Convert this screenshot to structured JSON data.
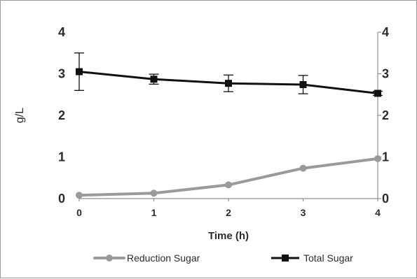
{
  "chart_data": {
    "type": "line",
    "title": "",
    "xlabel": "Time (h)",
    "ylabel": "g/L",
    "x": [
      0,
      1,
      2,
      3,
      4
    ],
    "xlim": [
      0,
      4
    ],
    "ylim": [
      0,
      4
    ],
    "y_ticks": [
      0,
      1,
      2,
      3,
      4
    ],
    "x_ticks": [
      0,
      1,
      2,
      3,
      4
    ],
    "secondary_y_ticks": [
      0,
      1,
      2,
      3,
      4
    ],
    "grid": false,
    "legend_position": "bottom",
    "series": [
      {
        "name": "Reduction Sugar",
        "values": [
          0.08,
          0.13,
          0.33,
          0.73,
          0.96
        ],
        "error": [
          0,
          0,
          0,
          0,
          0
        ],
        "color": "#9a9a9a",
        "marker": "circle"
      },
      {
        "name": "Total Sugar",
        "values": [
          3.05,
          2.87,
          2.77,
          2.74,
          2.53
        ],
        "error": [
          0.45,
          0.12,
          0.2,
          0.22,
          0.05
        ],
        "color": "#111111",
        "marker": "square"
      }
    ]
  }
}
